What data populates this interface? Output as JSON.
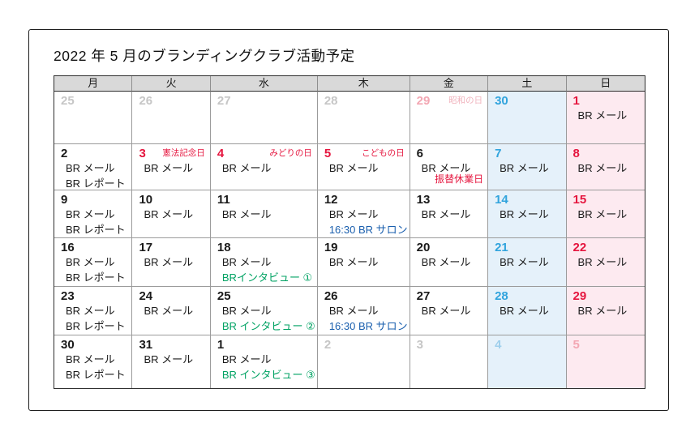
{
  "title": "2022 年 5 月のブランディングクラブ活動予定",
  "weekdays": [
    "月",
    "火",
    "水",
    "木",
    "金",
    "土",
    "日"
  ],
  "colors": {
    "header_bg": "#d9d9d9",
    "sat_bg": "#e5f1fa",
    "sun_bg": "#fdeaf0",
    "day_black": "#1a1a1a",
    "day_blue": "#31a4dd",
    "day_red": "#e5153e",
    "day_gray": "#c6c6c6",
    "day_faded_blue": "#9ecfec",
    "day_faded_pink": "#f3a7b3",
    "holiday_red": "#e5153e",
    "holiday_faded": "#f0b3bd",
    "event_green": "#00a263",
    "event_blue": "#1a5fae"
  },
  "weeks": [
    [
      {
        "day": "25",
        "num": "muted",
        "events": []
      },
      {
        "day": "26",
        "num": "muted",
        "events": []
      },
      {
        "day": "27",
        "num": "muted",
        "events": []
      },
      {
        "day": "28",
        "num": "muted",
        "events": []
      },
      {
        "day": "29",
        "num": "muted-sun",
        "holiday": {
          "text": "昭和の日",
          "style": "faded"
        },
        "events": []
      },
      {
        "day": "30",
        "num": "sat",
        "events": []
      },
      {
        "day": "1",
        "num": "sun",
        "events": [
          {
            "text": "BR メール",
            "color": "black"
          }
        ]
      }
    ],
    [
      {
        "day": "2",
        "num": "black",
        "events": [
          {
            "text": "BR メール",
            "color": "black"
          },
          {
            "text": "BR レポート",
            "color": "black"
          }
        ]
      },
      {
        "day": "3",
        "num": "sun",
        "holiday": {
          "text": "憲法記念日",
          "style": "red"
        },
        "events": [
          {
            "text": "BR メール",
            "color": "black"
          }
        ]
      },
      {
        "day": "4",
        "num": "sun",
        "holiday": {
          "text": "みどりの日",
          "style": "red"
        },
        "events": [
          {
            "text": "BR メール",
            "color": "black"
          }
        ]
      },
      {
        "day": "5",
        "num": "sun",
        "holiday": {
          "text": "こどもの日",
          "style": "red"
        },
        "events": [
          {
            "text": "BR メール",
            "color": "black"
          }
        ]
      },
      {
        "day": "6",
        "num": "black",
        "events": [
          {
            "text": "BR メール",
            "color": "black"
          }
        ],
        "note": "振替休業日"
      },
      {
        "day": "7",
        "num": "sat",
        "events": [
          {
            "text": "BR メール",
            "color": "black"
          }
        ]
      },
      {
        "day": "8",
        "num": "sun",
        "events": [
          {
            "text": "BR メール",
            "color": "black"
          }
        ]
      }
    ],
    [
      {
        "day": "9",
        "num": "black",
        "events": [
          {
            "text": "BR メール",
            "color": "black"
          },
          {
            "text": "BR レポート",
            "color": "black"
          }
        ]
      },
      {
        "day": "10",
        "num": "black",
        "events": [
          {
            "text": "BR メール",
            "color": "black"
          }
        ]
      },
      {
        "day": "11",
        "num": "black",
        "events": [
          {
            "text": "BR メール",
            "color": "black"
          }
        ]
      },
      {
        "day": "12",
        "num": "black",
        "events": [
          {
            "text": "BR メール",
            "color": "black"
          },
          {
            "text": "16:30 BR サロン",
            "color": "blue"
          }
        ]
      },
      {
        "day": "13",
        "num": "black",
        "events": [
          {
            "text": "BR メール",
            "color": "black"
          }
        ]
      },
      {
        "day": "14",
        "num": "sat",
        "events": [
          {
            "text": "BR メール",
            "color": "black"
          }
        ]
      },
      {
        "day": "15",
        "num": "sun",
        "events": [
          {
            "text": "BR メール",
            "color": "black"
          }
        ]
      }
    ],
    [
      {
        "day": "16",
        "num": "black",
        "events": [
          {
            "text": "BR メール",
            "color": "black"
          },
          {
            "text": "BR レポート",
            "color": "black"
          }
        ]
      },
      {
        "day": "17",
        "num": "black",
        "events": [
          {
            "text": "BR メール",
            "color": "black"
          }
        ]
      },
      {
        "day": "18",
        "num": "black",
        "events": [
          {
            "text": "BR メール",
            "color": "black"
          },
          {
            "text": "BRインタビュー ①",
            "color": "green"
          }
        ]
      },
      {
        "day": "19",
        "num": "black",
        "events": [
          {
            "text": "BR メール",
            "color": "black"
          }
        ]
      },
      {
        "day": "20",
        "num": "black",
        "events": [
          {
            "text": "BR メール",
            "color": "black"
          }
        ]
      },
      {
        "day": "21",
        "num": "sat",
        "events": [
          {
            "text": "BR メール",
            "color": "black"
          }
        ]
      },
      {
        "day": "22",
        "num": "sun",
        "events": [
          {
            "text": "BR メール",
            "color": "black"
          }
        ]
      }
    ],
    [
      {
        "day": "23",
        "num": "black",
        "events": [
          {
            "text": "BR メール",
            "color": "black"
          },
          {
            "text": "BR レポート",
            "color": "black"
          }
        ]
      },
      {
        "day": "24",
        "num": "black",
        "events": [
          {
            "text": "BR メール",
            "color": "black"
          }
        ]
      },
      {
        "day": "25",
        "num": "black",
        "events": [
          {
            "text": "BR メール",
            "color": "black"
          },
          {
            "text": "BR インタビュー ②",
            "color": "green"
          }
        ]
      },
      {
        "day": "26",
        "num": "black",
        "events": [
          {
            "text": "BR メール",
            "color": "black"
          },
          {
            "text": "16:30 BR サロン",
            "color": "blue"
          }
        ]
      },
      {
        "day": "27",
        "num": "black",
        "events": [
          {
            "text": "BR メール",
            "color": "black"
          }
        ]
      },
      {
        "day": "28",
        "num": "sat",
        "events": [
          {
            "text": "BR メール",
            "color": "black"
          }
        ]
      },
      {
        "day": "29",
        "num": "sun",
        "events": [
          {
            "text": "BR メール",
            "color": "black"
          }
        ]
      }
    ],
    [
      {
        "day": "30",
        "num": "black",
        "events": [
          {
            "text": "BR メール",
            "color": "black"
          },
          {
            "text": "BR レポート",
            "color": "black"
          }
        ]
      },
      {
        "day": "31",
        "num": "black",
        "events": [
          {
            "text": "BR メール",
            "color": "black"
          }
        ]
      },
      {
        "day": "1",
        "num": "black",
        "events": [
          {
            "text": "BR メール",
            "color": "black"
          },
          {
            "text": "BR インタビュー ③",
            "color": "green"
          }
        ]
      },
      {
        "day": "2",
        "num": "muted",
        "events": []
      },
      {
        "day": "3",
        "num": "muted",
        "events": []
      },
      {
        "day": "4",
        "num": "muted-sat",
        "events": []
      },
      {
        "day": "5",
        "num": "muted-sun",
        "events": []
      }
    ]
  ]
}
